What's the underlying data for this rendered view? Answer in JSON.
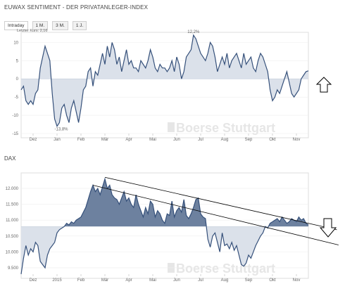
{
  "header": {
    "title": "EUWAX SENTIMENT - DER PRIVATANLEGER-INDEX",
    "tabs": [
      "Intraday",
      "1 M.",
      "3 M.",
      "1 J."
    ],
    "subtitle": "Letzter Kurs: 2,16",
    "watermark": "Boerse Stuttgart"
  },
  "chart_data": [
    {
      "type": "line",
      "title": "",
      "ylim": [
        -15,
        12
      ],
      "yticks": [
        10,
        5,
        0,
        -5,
        -10,
        -15
      ],
      "baseline": 0,
      "annotations": [
        "12,2%",
        "-13,8%"
      ],
      "xticks": [
        "Dez",
        "Jan",
        "Feb",
        "Mär",
        "Apr",
        "Mai",
        "Jun",
        "Jul",
        "Aug",
        "Sep",
        "Okt",
        "Nov"
      ],
      "x": [
        0,
        1,
        2,
        3,
        4,
        5,
        6,
        7,
        8,
        9,
        10,
        11,
        12,
        13,
        14,
        15,
        16,
        17,
        18,
        19,
        20,
        21,
        22,
        23,
        24,
        25,
        26,
        27,
        28,
        29,
        30,
        31,
        32,
        33,
        34,
        35,
        36,
        37,
        38,
        39,
        40,
        41,
        42,
        43,
        44,
        45,
        46,
        47,
        48,
        49,
        50,
        51,
        52,
        53,
        54,
        55,
        56,
        57,
        58,
        59,
        60,
        61,
        62,
        63,
        64,
        65,
        66,
        67,
        68,
        69,
        70,
        71,
        72,
        73,
        74,
        75,
        76,
        77,
        78,
        79,
        80,
        81,
        82,
        83,
        84,
        85,
        86,
        87,
        88,
        89,
        90,
        91,
        92,
        93,
        94,
        95,
        96,
        97,
        98,
        99,
        100,
        101,
        102,
        103,
        104,
        105,
        106,
        107,
        108,
        109,
        110,
        111,
        112,
        113,
        114,
        115,
        116,
        117,
        118,
        119,
        120
      ],
      "values": [
        -3,
        -2,
        -6,
        -7,
        -6,
        -7,
        -4,
        -3,
        3,
        6,
        9,
        7,
        5,
        -4,
        -11,
        -13,
        -12,
        -8,
        -7,
        -10,
        -12,
        -8,
        -6,
        -9,
        -12,
        -8,
        -3,
        -2,
        2,
        3,
        -2,
        2,
        1,
        4,
        7,
        4,
        9,
        6,
        10,
        8,
        4,
        6,
        2,
        5,
        8,
        4,
        5,
        3,
        3,
        2,
        5,
        4,
        3,
        5,
        8,
        6,
        3,
        2,
        4,
        3,
        3,
        2,
        3,
        5,
        2,
        6,
        4,
        0,
        2,
        6,
        7,
        8,
        12,
        11,
        9,
        7,
        6,
        5,
        7,
        10,
        9,
        6,
        2,
        4,
        6,
        4,
        7,
        3,
        5,
        6,
        7,
        5,
        3,
        7,
        4,
        5,
        6,
        3,
        2,
        5,
        7,
        6,
        4,
        2,
        -3,
        -6,
        -5,
        -3,
        -4,
        -2,
        0,
        2,
        -1,
        -4,
        -5,
        -4,
        -3,
        0,
        1,
        2,
        2.2
      ]
    },
    {
      "type": "area",
      "title": "DAX",
      "ylim": [
        9300,
        12400
      ],
      "yticks": [
        12000,
        11500,
        11000,
        10500,
        10000,
        9500
      ],
      "ytick_labels": [
        "12.000",
        "11.500",
        "11.000",
        "10.500",
        "10.000",
        "9.500"
      ],
      "baseline": 10800,
      "xticks": [
        "Dez",
        "2015",
        "Feb",
        "Mär",
        "Apr",
        "Mai",
        "Jun",
        "Jul",
        "Aug",
        "Sep",
        "Okt",
        "Nov"
      ],
      "x": [
        0,
        1,
        2,
        3,
        4,
        5,
        6,
        7,
        8,
        9,
        10,
        11,
        12,
        13,
        14,
        15,
        16,
        17,
        18,
        19,
        20,
        21,
        22,
        23,
        24,
        25,
        26,
        27,
        28,
        29,
        30,
        31,
        32,
        33,
        34,
        35,
        36,
        37,
        38,
        39,
        40,
        41,
        42,
        43,
        44,
        45,
        46,
        47,
        48,
        49,
        50,
        51,
        52,
        53,
        54,
        55,
        56,
        57,
        58,
        59,
        60,
        61,
        62,
        63,
        64,
        65,
        66,
        67,
        68,
        69,
        70,
        71,
        72,
        73,
        74,
        75,
        76,
        77,
        78,
        79,
        80,
        81,
        82,
        83,
        84,
        85,
        86,
        87,
        88,
        89,
        90,
        91,
        92,
        93,
        94,
        95,
        96,
        97,
        98,
        99,
        100,
        101,
        102,
        103,
        104,
        105,
        106,
        107,
        108,
        109,
        110,
        111,
        112,
        113,
        114,
        115,
        116,
        117,
        118,
        119,
        120
      ],
      "values": [
        9300,
        9800,
        10200,
        9900,
        10100,
        10000,
        10300,
        10200,
        9700,
        9600,
        9500,
        9900,
        10100,
        10200,
        10300,
        10600,
        10700,
        10750,
        10800,
        10900,
        10850,
        10950,
        10900,
        11000,
        11050,
        11100,
        11250,
        11400,
        11650,
        11900,
        12100,
        11900,
        12000,
        11800,
        12050,
        12300,
        12000,
        12100,
        11800,
        11700,
        11650,
        11500,
        11700,
        11900,
        11600,
        11700,
        11500,
        11400,
        11800,
        11500,
        11300,
        11100,
        11400,
        11200,
        11600,
        11500,
        11100,
        11300,
        11200,
        11000,
        10900,
        11200,
        11150,
        11600,
        11100,
        11300,
        11400,
        11250,
        11650,
        11150,
        11050,
        11200,
        11400,
        11650,
        11700,
        11200,
        11100,
        11050,
        10400,
        10150,
        10500,
        10600,
        10300,
        10000,
        10600,
        10200,
        10250,
        10100,
        10300,
        10050,
        10200,
        9900,
        9600,
        9550,
        9650,
        9900,
        9800,
        10000,
        10200,
        10350,
        10500,
        10600,
        10800,
        10750,
        10900,
        10950,
        11000,
        11050,
        10950,
        11100,
        11000,
        10900,
        10950,
        11050,
        11000,
        10950,
        11100,
        11000,
        11050,
        10900,
        10850
      ],
      "trendlines": [
        {
          "from": [
            35,
            12350
          ],
          "to": [
            120,
            10900
          ]
        },
        {
          "from": [
            30,
            12100
          ],
          "to": [
            120,
            10450
          ]
        }
      ]
    }
  ]
}
